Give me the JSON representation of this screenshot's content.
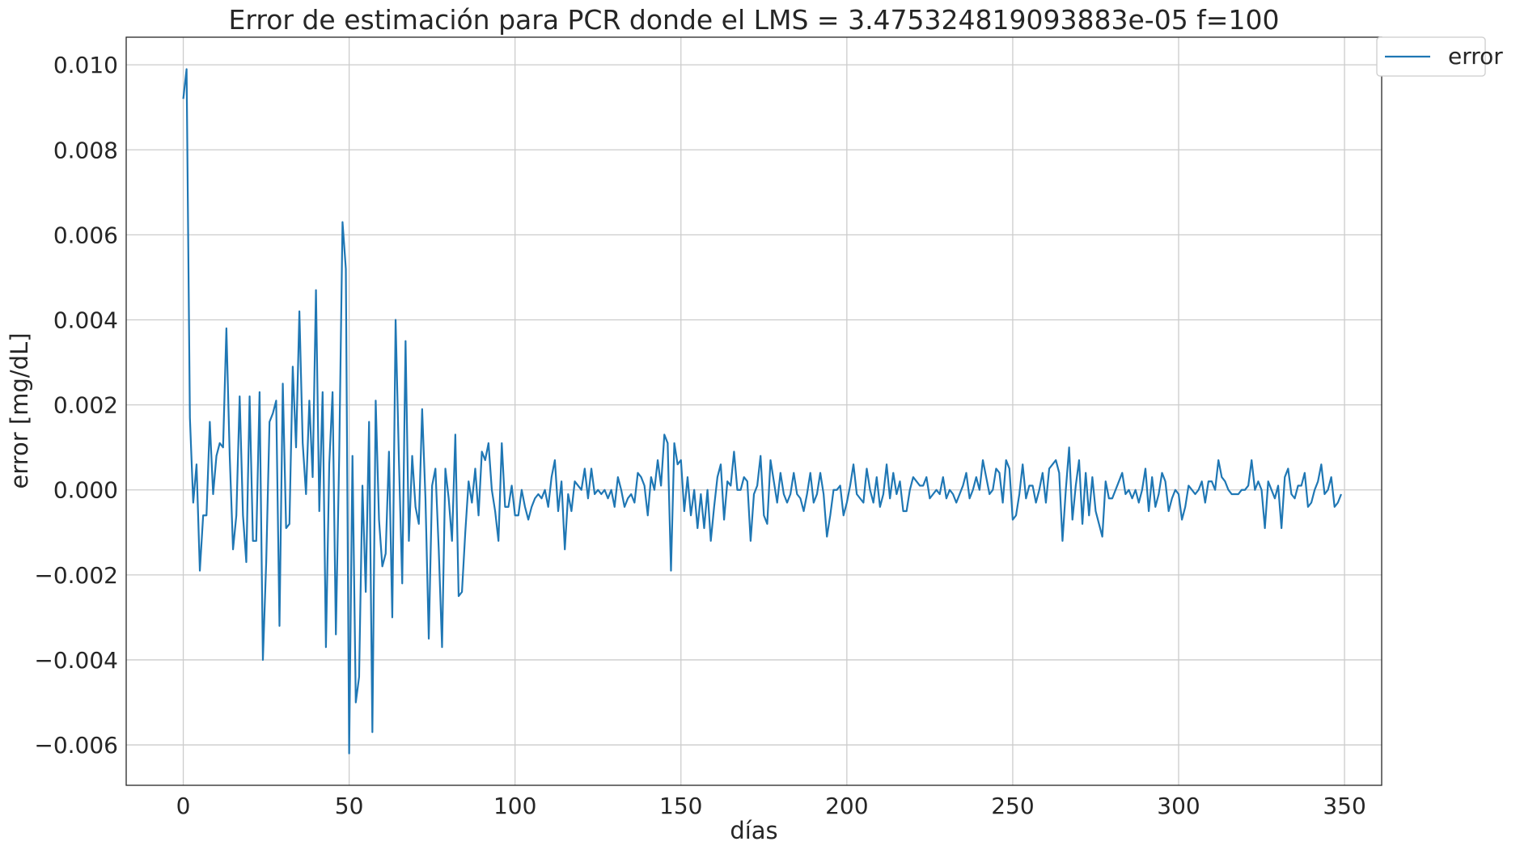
{
  "chart_data": {
    "type": "line",
    "title": "Error de estimación para PCR donde el LMS = 3.475324819093883e-05 f=100",
    "xlabel": "días",
    "ylabel": "error  [mg/dL]",
    "xlim": [
      -17.2,
      361.2
    ],
    "ylim": [
      -0.00695,
      0.01065
    ],
    "x_ticks": [
      0,
      50,
      100,
      150,
      200,
      250,
      300,
      350
    ],
    "x_tick_labels": [
      "0",
      "50",
      "100",
      "150",
      "200",
      "250",
      "300",
      "350"
    ],
    "y_ticks": [
      -0.006,
      -0.004,
      -0.002,
      0.0,
      0.002,
      0.004,
      0.006,
      0.008,
      0.01
    ],
    "y_tick_labels": [
      "−0.006",
      "−0.004",
      "−0.002",
      "0.000",
      "0.002",
      "0.004",
      "0.006",
      "0.008",
      "0.010"
    ],
    "grid": true,
    "legend_position": "outside top-right",
    "series": [
      {
        "name": "error",
        "color": "#1f77b4",
        "values": [
          0.0092,
          0.0099,
          0.0017,
          -0.0003,
          0.0006,
          -0.0019,
          -0.0006,
          -0.0006,
          0.0016,
          -0.0001,
          0.0008,
          0.0011,
          0.001,
          0.0038,
          0.0008,
          -0.0014,
          -0.0006,
          0.0022,
          -0.0006,
          -0.0017,
          0.0022,
          -0.0012,
          -0.0012,
          0.0023,
          -0.004,
          -0.0017,
          0.0016,
          0.0018,
          0.0021,
          -0.0032,
          0.0025,
          -0.0009,
          -0.0008,
          0.0029,
          0.001,
          0.0042,
          0.0011,
          -0.0001,
          0.0021,
          0.0003,
          0.0047,
          -0.0005,
          0.0023,
          -0.0037,
          0.0006,
          0.0023,
          -0.0034,
          0.0008,
          0.0063,
          0.0052,
          -0.0062,
          0.0008,
          -0.005,
          -0.0044,
          0.0001,
          -0.0024,
          0.0016,
          -0.0057,
          0.0021,
          -0.0007,
          -0.0018,
          -0.0015,
          0.0009,
          -0.003,
          0.004,
          0.0007,
          -0.0022,
          0.0035,
          -0.0012,
          0.0008,
          -0.0004,
          -0.0008,
          0.0019,
          -0.0002,
          -0.0035,
          0.0001,
          0.0005,
          -0.0014,
          -0.0037,
          0.0005,
          -0.0002,
          -0.0012,
          0.0013,
          -0.0025,
          -0.0024,
          -0.001,
          0.0002,
          -0.0003,
          0.0005,
          -0.0006,
          0.0009,
          0.0007,
          0.0011,
          0.0,
          -0.0005,
          -0.0012,
          0.0011,
          -0.0004,
          -0.0004,
          0.0001,
          -0.0006,
          -0.0006,
          0.0,
          -0.0004,
          -0.0007,
          -0.0004,
          -0.0002,
          -0.0001,
          -0.0002,
          0.0,
          -0.0004,
          0.0003,
          0.0007,
          -0.0005,
          0.0002,
          -0.0014,
          -0.0001,
          -0.0005,
          0.0002,
          0.0001,
          0.0,
          0.0005,
          -0.0002,
          0.0005,
          -0.0001,
          0.0,
          -0.0001,
          0.0,
          -0.0002,
          0.0,
          -0.0004,
          0.0003,
          0.0,
          -0.0004,
          -0.0002,
          -0.0001,
          -0.0003,
          0.0004,
          0.0003,
          0.0001,
          -0.0006,
          0.0003,
          0.0,
          0.0007,
          0.0001,
          0.0013,
          0.0011,
          -0.0019,
          0.0011,
          0.0006,
          0.0007,
          -0.0005,
          0.0003,
          -0.0006,
          0.0,
          -0.0009,
          -0.0001,
          -0.0009,
          0.0,
          -0.0012,
          -0.0004,
          0.0003,
          0.0006,
          -0.0007,
          0.0002,
          0.0001,
          0.0009,
          0.0,
          0.0,
          0.0003,
          0.0002,
          -0.0012,
          -0.0001,
          0.0001,
          0.0008,
          -0.0006,
          -0.0008,
          0.0007,
          0.0002,
          -0.0003,
          0.0004,
          -0.0001,
          -0.0003,
          -0.0001,
          0.0004,
          -0.0001,
          -0.0002,
          -0.0005,
          -0.0001,
          0.0004,
          -0.0003,
          -0.0001,
          0.0004,
          -0.0001,
          -0.0011,
          -0.0006,
          0.0,
          0.0,
          0.0001,
          -0.0006,
          -0.0003,
          0.0001,
          0.0006,
          -0.0001,
          -0.0002,
          -0.0003,
          0.0005,
          0.0,
          -0.0003,
          0.0003,
          -0.0004,
          -0.0001,
          0.0006,
          -0.0002,
          0.0004,
          -0.0001,
          0.0002,
          -0.0005,
          -0.0005,
          0.0,
          0.0003,
          0.0002,
          0.0001,
          0.0001,
          0.0003,
          -0.0002,
          -0.0001,
          0.0,
          -0.0001,
          0.0003,
          -0.0002,
          0.0,
          -0.0001,
          -0.0003,
          -0.0001,
          0.0001,
          0.0004,
          -0.0002,
          0.0,
          0.0003,
          0.0,
          0.0007,
          0.0003,
          -0.0001,
          0.0,
          0.0005,
          0.0004,
          -0.0003,
          0.0007,
          0.0005,
          -0.0007,
          -0.0006,
          -0.0001,
          0.0006,
          -0.0002,
          0.0001,
          0.0001,
          -0.0003,
          0.0,
          0.0004,
          -0.0003,
          0.0005,
          0.0006,
          0.0007,
          0.0004,
          -0.0012,
          0.0,
          0.001,
          -0.0007,
          0.0001,
          0.0007,
          -0.0008,
          0.0004,
          -0.0006,
          0.0003,
          -0.0005,
          -0.0008,
          -0.0011,
          0.0002,
          -0.0002,
          -0.0002,
          0.0,
          0.0002,
          0.0004,
          -0.0001,
          0.0,
          -0.0002,
          0.0,
          -0.0003,
          0.0,
          0.0005,
          -0.0005,
          0.0003,
          -0.0004,
          -0.0001,
          0.0004,
          0.0002,
          -0.0005,
          -0.0002,
          0.0,
          -0.0001,
          -0.0007,
          -0.0004,
          0.0001,
          0.0,
          -0.0001,
          0.0,
          0.0002,
          -0.0003,
          0.0002,
          0.0002,
          0.0,
          0.0007,
          0.0003,
          0.0002,
          0.0,
          -0.0001,
          -0.0001,
          -0.0001,
          0.0,
          0.0,
          0.0001,
          0.0007,
          0.0,
          0.0002,
          0.0,
          -0.0009,
          0.0002,
          0.0,
          -0.0002,
          0.0001,
          -0.0009,
          0.0003,
          0.0005,
          -0.0001,
          -0.0002,
          0.0001,
          0.0001,
          0.0004,
          -0.0004,
          -0.0003,
          0.0,
          0.0002,
          0.0006,
          -0.0001,
          0.0,
          0.0003,
          -0.0004,
          -0.0003,
          -0.0001
        ]
      }
    ]
  }
}
